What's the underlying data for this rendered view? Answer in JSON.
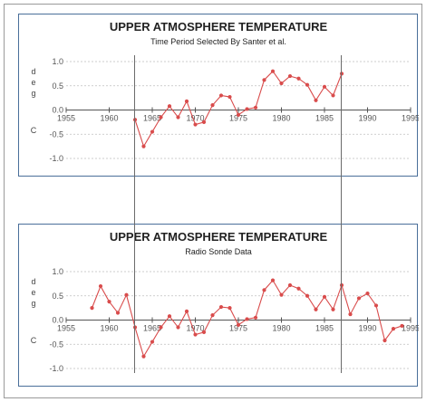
{
  "chart_data": [
    {
      "type": "line",
      "title": "UPPER ATMOSPHERE TEMPERATURE",
      "subtitle": "Time Period Selected By Santer et al.",
      "ylabel_top": [
        "d",
        "e",
        "g"
      ],
      "ylabel_bottom": "C",
      "xlim": [
        1955,
        1995
      ],
      "ylim": [
        -1.0,
        1.0
      ],
      "xticks": [
        1955,
        1960,
        1965,
        1970,
        1975,
        1980,
        1985,
        1990,
        1995
      ],
      "yticks": [
        1.0,
        0.5,
        0.0,
        -0.5,
        -1.0
      ],
      "ytick_labels": [
        "1.0",
        "0.5",
        "0.0",
        "-0.5",
        "-1.0"
      ],
      "grid": true,
      "line_color": "#d94c4c",
      "x": [
        1963,
        1964,
        1965,
        1966,
        1967,
        1968,
        1969,
        1970,
        1971,
        1972,
        1973,
        1974,
        1975,
        1976,
        1977,
        1978,
        1979,
        1980,
        1981,
        1982,
        1983,
        1984,
        1985,
        1986,
        1987
      ],
      "y": [
        -0.2,
        -0.75,
        -0.45,
        -0.15,
        0.08,
        -0.15,
        0.18,
        -0.3,
        -0.25,
        0.1,
        0.3,
        0.27,
        -0.1,
        0.02,
        0.05,
        0.62,
        0.8,
        0.55,
        0.7,
        0.65,
        0.52,
        0.2,
        0.48,
        0.3,
        0.75
      ],
      "vlines": [
        1963,
        1987
      ]
    },
    {
      "type": "line",
      "title": "UPPER ATMOSPHERE TEMPERATURE",
      "subtitle": "Radio Sonde Data",
      "ylabel_top": [
        "d",
        "e",
        "g"
      ],
      "ylabel_bottom": "C",
      "xlim": [
        1955,
        1995
      ],
      "ylim": [
        -1.0,
        1.0
      ],
      "xticks": [
        1955,
        1960,
        1965,
        1970,
        1975,
        1980,
        1985,
        1990,
        1995
      ],
      "yticks": [
        1.0,
        0.5,
        0.0,
        -0.5,
        -1.0
      ],
      "ytick_labels": [
        "1.0",
        "0.5",
        "0.0",
        "-0.5",
        "-1.0"
      ],
      "grid": true,
      "line_color": "#d94c4c",
      "x": [
        1958,
        1959,
        1960,
        1961,
        1962,
        1963,
        1964,
        1965,
        1966,
        1967,
        1968,
        1969,
        1970,
        1971,
        1972,
        1973,
        1974,
        1975,
        1976,
        1977,
        1978,
        1979,
        1980,
        1981,
        1982,
        1983,
        1984,
        1985,
        1986,
        1987,
        1988,
        1989,
        1990,
        1991,
        1992,
        1993,
        1994
      ],
      "y": [
        0.25,
        0.7,
        0.38,
        0.15,
        0.52,
        -0.15,
        -0.75,
        -0.45,
        -0.15,
        0.08,
        -0.15,
        0.18,
        -0.3,
        -0.25,
        0.1,
        0.27,
        0.25,
        -0.1,
        0.02,
        0.05,
        0.62,
        0.82,
        0.52,
        0.72,
        0.65,
        0.5,
        0.22,
        0.48,
        0.22,
        0.72,
        0.12,
        0.45,
        0.55,
        0.3,
        -0.42,
        -0.18,
        -0.12
      ],
      "vlines": [
        1963,
        1987
      ]
    }
  ]
}
